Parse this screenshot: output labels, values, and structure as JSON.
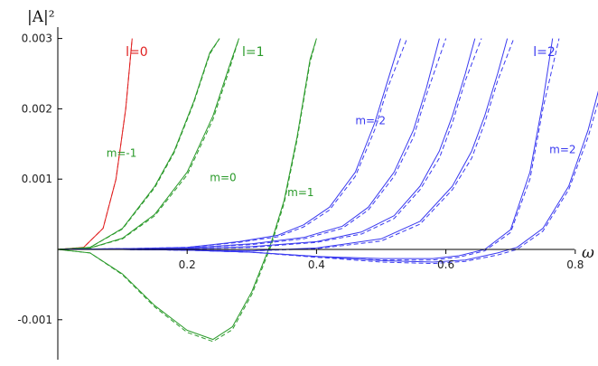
{
  "chart_data": {
    "type": "line",
    "ylabel": "|A|²",
    "xlabel": "ω",
    "xlim": [
      0,
      0.88
    ],
    "ylim": [
      -0.00155,
      0.003
    ],
    "x_ticks": [
      {
        "value": 0.2,
        "label": "0.2"
      },
      {
        "value": 0.4,
        "label": "0.4"
      },
      {
        "value": 0.6,
        "label": "0.6"
      },
      {
        "value": 0.8,
        "label": "0.8"
      }
    ],
    "y_ticks": [
      {
        "value": 0.003,
        "label": "0.003"
      },
      {
        "value": 0.002,
        "label": "0.002"
      },
      {
        "value": 0.001,
        "label": "0.001"
      },
      {
        "value": -0.001,
        "label": "-0.001"
      }
    ],
    "colors": {
      "l0": "#e02020",
      "l1": "#2a9a2a",
      "l2": "#3a3af0"
    },
    "series": [
      {
        "group": "l0",
        "style": "solid",
        "x": [
          0,
          0.04,
          0.07,
          0.09,
          0.105,
          0.115
        ],
        "y": [
          0,
          3e-05,
          0.0003,
          0.001,
          0.002,
          0.003
        ]
      },
      {
        "group": "l0",
        "style": "dashed",
        "x": [
          0,
          0.04,
          0.07,
          0.09,
          0.105,
          0.115
        ],
        "y": [
          0,
          3e-05,
          0.0003,
          0.001,
          0.002,
          0.003
        ]
      },
      {
        "group": "l1",
        "style": "solid",
        "x": [
          0,
          0.05,
          0.1,
          0.15,
          0.18,
          0.21,
          0.235,
          0.25
        ],
        "y": [
          0,
          3e-05,
          0.0003,
          0.0009,
          0.0014,
          0.0021,
          0.0028,
          0.003
        ]
      },
      {
        "group": "l1",
        "style": "dashed",
        "x": [
          0,
          0.05,
          0.1,
          0.15,
          0.18,
          0.21,
          0.235,
          0.25
        ],
        "y": [
          0,
          3e-05,
          0.00029,
          0.00088,
          0.00138,
          0.00208,
          0.00278,
          0.003
        ]
      },
      {
        "group": "l1",
        "style": "solid",
        "x": [
          0,
          0.05,
          0.1,
          0.15,
          0.2,
          0.24,
          0.265,
          0.28
        ],
        "y": [
          0,
          2e-05,
          0.00016,
          0.0005,
          0.0011,
          0.0019,
          0.0026,
          0.003
        ]
      },
      {
        "group": "l1",
        "style": "dashed",
        "x": [
          0,
          0.05,
          0.1,
          0.15,
          0.2,
          0.24,
          0.265,
          0.28
        ],
        "y": [
          0,
          2e-05,
          0.00015,
          0.00048,
          0.00106,
          0.00185,
          0.00255,
          0.003
        ]
      },
      {
        "group": "l1",
        "style": "solid",
        "x": [
          0,
          0.05,
          0.1,
          0.15,
          0.2,
          0.24,
          0.27,
          0.3,
          0.33,
          0.35,
          0.37,
          0.39,
          0.4
        ],
        "y": [
          0,
          -5e-05,
          -0.00035,
          -0.0008,
          -0.00115,
          -0.00128,
          -0.0011,
          -0.0006,
          0.0001,
          0.0007,
          0.0016,
          0.0027,
          0.003
        ]
      },
      {
        "group": "l1",
        "style": "dashed",
        "x": [
          0,
          0.05,
          0.1,
          0.15,
          0.2,
          0.24,
          0.27,
          0.3,
          0.33,
          0.35,
          0.37,
          0.39,
          0.4
        ],
        "y": [
          0,
          -5e-05,
          -0.00036,
          -0.00082,
          -0.00118,
          -0.00131,
          -0.00114,
          -0.00064,
          6e-05,
          0.00066,
          0.00156,
          0.00266,
          0.003
        ]
      },
      {
        "group": "l2",
        "style": "solid",
        "x": [
          0,
          0.1,
          0.2,
          0.28,
          0.34,
          0.38,
          0.42,
          0.46,
          0.49,
          0.51,
          0.53
        ],
        "y": [
          0,
          1e-05,
          3e-05,
          0.00011,
          0.0002,
          0.00035,
          0.0006,
          0.0011,
          0.0018,
          0.0024,
          0.003
        ]
      },
      {
        "group": "l2",
        "style": "dashed",
        "x": [
          0,
          0.1,
          0.2,
          0.28,
          0.34,
          0.38,
          0.42,
          0.46,
          0.49,
          0.51,
          0.54
        ],
        "y": [
          0,
          1e-05,
          3e-05,
          0.0001,
          0.00018,
          0.00032,
          0.00056,
          0.00104,
          0.0017,
          0.0023,
          0.003
        ]
      },
      {
        "group": "l2",
        "style": "solid",
        "x": [
          0,
          0.1,
          0.2,
          0.3,
          0.38,
          0.44,
          0.48,
          0.52,
          0.55,
          0.57,
          0.59
        ],
        "y": [
          0,
          1e-05,
          2e-05,
          8e-05,
          0.00017,
          0.00033,
          0.0006,
          0.0011,
          0.0017,
          0.0023,
          0.003
        ]
      },
      {
        "group": "l2",
        "style": "dashed",
        "x": [
          0,
          0.1,
          0.2,
          0.3,
          0.38,
          0.44,
          0.48,
          0.52,
          0.55,
          0.57,
          0.6
        ],
        "y": [
          0,
          1e-05,
          2e-05,
          7e-05,
          0.00015,
          0.0003,
          0.00056,
          0.00104,
          0.0016,
          0.0022,
          0.003
        ]
      },
      {
        "group": "l2",
        "style": "solid",
        "x": [
          0,
          0.1,
          0.2,
          0.3,
          0.4,
          0.47,
          0.52,
          0.56,
          0.59,
          0.61,
          0.63,
          0.645
        ],
        "y": [
          0,
          0,
          1e-05,
          4e-05,
          0.00011,
          0.00025,
          0.00048,
          0.0009,
          0.0014,
          0.0019,
          0.0025,
          0.003
        ]
      },
      {
        "group": "l2",
        "style": "dashed",
        "x": [
          0,
          0.1,
          0.2,
          0.3,
          0.4,
          0.47,
          0.52,
          0.56,
          0.59,
          0.61,
          0.63,
          0.655
        ],
        "y": [
          0,
          0,
          1e-05,
          3e-05,
          0.0001,
          0.00022,
          0.00044,
          0.00085,
          0.0013,
          0.0018,
          0.0024,
          0.003
        ]
      },
      {
        "group": "l2",
        "style": "solid",
        "x": [
          0,
          0.1,
          0.2,
          0.3,
          0.4,
          0.5,
          0.56,
          0.61,
          0.64,
          0.66,
          0.68,
          0.695
        ],
        "y": [
          0,
          0,
          -1e-05,
          -2e-05,
          2e-05,
          0.00015,
          0.0004,
          0.0009,
          0.0014,
          0.0019,
          0.0025,
          0.003
        ]
      },
      {
        "group": "l2",
        "style": "dashed",
        "x": [
          0,
          0.1,
          0.2,
          0.3,
          0.4,
          0.5,
          0.56,
          0.61,
          0.64,
          0.66,
          0.68,
          0.705
        ],
        "y": [
          0,
          0,
          -1e-05,
          -2e-05,
          1e-05,
          0.00012,
          0.00036,
          0.00085,
          0.0013,
          0.0018,
          0.0024,
          0.003
        ]
      },
      {
        "group": "l2",
        "style": "solid",
        "x": [
          0,
          0.1,
          0.2,
          0.3,
          0.4,
          0.5,
          0.58,
          0.62,
          0.66,
          0.7,
          0.73,
          0.75,
          0.765
        ],
        "y": [
          0,
          0,
          -1e-05,
          -4e-05,
          -0.0001,
          -0.00013,
          -0.00013,
          -9e-05,
          0,
          0.00028,
          0.0011,
          0.0021,
          0.003
        ]
      },
      {
        "group": "l2",
        "style": "dashed",
        "x": [
          0,
          0.1,
          0.2,
          0.3,
          0.4,
          0.5,
          0.58,
          0.62,
          0.66,
          0.7,
          0.73,
          0.75,
          0.775
        ],
        "y": [
          0,
          0,
          -1e-05,
          -4e-05,
          -0.00011,
          -0.00015,
          -0.00015,
          -0.00011,
          -2e-05,
          0.00024,
          0.001,
          0.002,
          0.003
        ]
      },
      {
        "group": "l2",
        "style": "solid",
        "x": [
          0,
          0.1,
          0.2,
          0.3,
          0.4,
          0.5,
          0.58,
          0.63,
          0.68,
          0.71,
          0.75,
          0.79,
          0.82,
          0.84,
          0.855
        ],
        "y": [
          0,
          0,
          -1e-05,
          -4e-05,
          -0.0001,
          -0.00016,
          -0.00018,
          -0.00015,
          -5e-05,
          3e-05,
          0.0003,
          0.0009,
          0.0017,
          0.0024,
          0.003
        ]
      },
      {
        "group": "l2",
        "style": "dashed",
        "x": [
          0,
          0.1,
          0.2,
          0.3,
          0.4,
          0.5,
          0.58,
          0.63,
          0.68,
          0.71,
          0.75,
          0.79,
          0.82,
          0.845,
          0.865
        ],
        "y": [
          0,
          0,
          -1e-05,
          -4e-05,
          -0.00011,
          -0.00018,
          -0.0002,
          -0.00017,
          -8e-05,
          0,
          0.00026,
          0.00085,
          0.0016,
          0.0024,
          0.003
        ]
      }
    ],
    "annotations": [
      {
        "text": "l=0",
        "group": "l0",
        "x": 0.105,
        "y": 0.00275,
        "size": "lg"
      },
      {
        "text": "l=1",
        "group": "l1",
        "x": 0.285,
        "y": 0.00275,
        "size": "lg"
      },
      {
        "text": "l=2",
        "group": "l2",
        "x": 0.735,
        "y": 0.00275,
        "size": "lg"
      },
      {
        "text": "m=-1",
        "group": "l1",
        "x": 0.075,
        "y": 0.00132,
        "size": "sm"
      },
      {
        "text": "m=0",
        "group": "l1",
        "x": 0.235,
        "y": 0.00097,
        "size": "sm"
      },
      {
        "text": "m=1",
        "group": "l1",
        "x": 0.355,
        "y": 0.00076,
        "size": "sm"
      },
      {
        "text": "m=-2",
        "group": "l2",
        "x": 0.46,
        "y": 0.00178,
        "size": "sm"
      },
      {
        "text": "m=2",
        "group": "l2",
        "x": 0.76,
        "y": 0.00137,
        "size": "sm"
      }
    ]
  }
}
